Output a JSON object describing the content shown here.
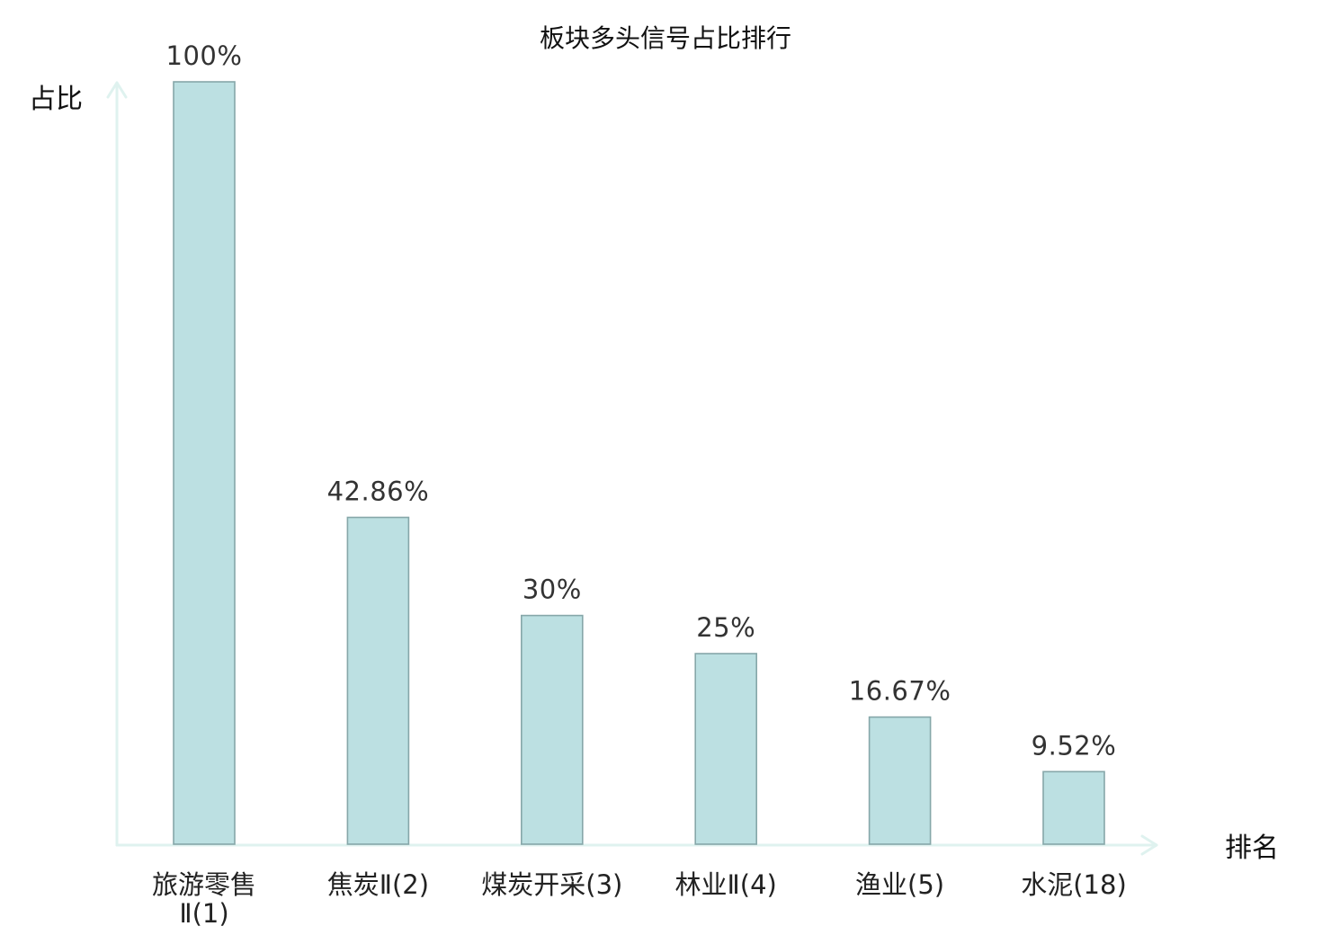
{
  "chart_data": {
    "type": "bar",
    "title": "板块多头信号占比排行",
    "xlabel": "排名",
    "ylabel": "占比",
    "ylim": [
      0,
      100
    ],
    "grid": false,
    "categories": [
      {
        "name": "旅游零售Ⅱ",
        "rank": "(1)"
      },
      {
        "name": "焦炭Ⅱ",
        "rank": "(2)"
      },
      {
        "name": "煤炭开采",
        "rank": "(3)"
      },
      {
        "name": "林业Ⅱ",
        "rank": "(4)"
      },
      {
        "name": "渔业",
        "rank": "(5)"
      },
      {
        "name": "水泥",
        "rank": "(18)"
      }
    ],
    "values": [
      100,
      42.86,
      30,
      25,
      16.67,
      9.52
    ],
    "value_labels": [
      "100%",
      "42.86%",
      "30%",
      "25%",
      "16.67%",
      "9.52%"
    ],
    "highlighted_category": "水泥",
    "colors": {
      "bar_fill": "#bce0e2",
      "bar_stroke": "#86a7a9",
      "axis": "#dff2ef",
      "highlight_text": "#e01818",
      "label_text": "#222222",
      "value_text": "#333333"
    }
  }
}
